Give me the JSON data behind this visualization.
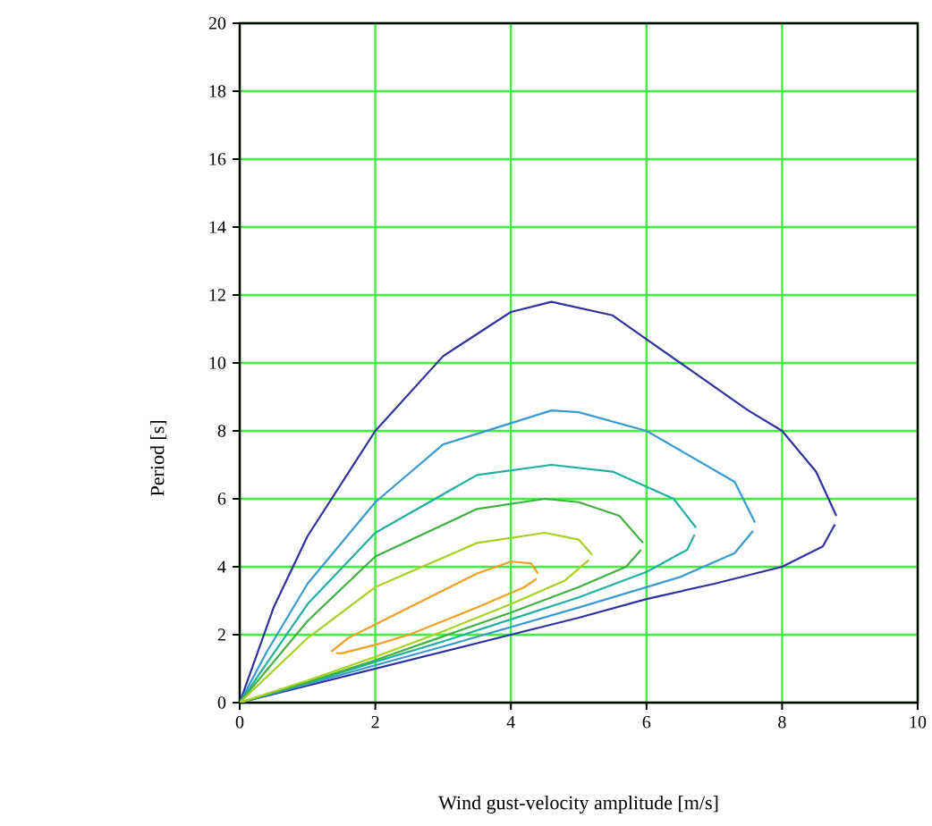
{
  "chart_data": {
    "type": "line",
    "xlabel": "Wind gust-velocity amplitude [m/s]",
    "ylabel": "Period [s]",
    "xlim": [
      0,
      10
    ],
    "ylim": [
      0,
      20
    ],
    "xticks": [
      0,
      2,
      4,
      6,
      8,
      10
    ],
    "yticks": [
      0,
      2,
      4,
      6,
      8,
      10,
      12,
      14,
      16,
      18,
      20
    ],
    "grid": true,
    "marker": "none",
    "line_style": "solid",
    "series": [
      {
        "color": "#3030a0",
        "x": [
          0,
          0.5,
          1,
          2,
          3,
          4,
          4.6,
          5.5,
          6.5,
          7.5,
          8,
          8.5,
          8.8
        ],
        "values": [
          0,
          2.8,
          4.9,
          8.0,
          10.2,
          11.5,
          11.8,
          11.4,
          10,
          8.6,
          8,
          6.8,
          5.5
        ]
      },
      {
        "color": "#3030a0",
        "x": [
          0,
          1,
          2,
          3,
          4,
          5,
          6,
          7,
          8,
          8.6,
          8.78
        ],
        "values": [
          0,
          0.5,
          1,
          1.5,
          2,
          2.5,
          3.05,
          3.5,
          4,
          4.6,
          5.25
        ]
      },
      {
        "color": "#3a9ad0",
        "x": [
          0,
          0.4,
          1,
          2,
          3,
          4.6,
          5,
          6,
          7.3,
          7.6
        ],
        "values": [
          0,
          1.5,
          3.5,
          5.9,
          7.6,
          8.6,
          8.55,
          8,
          6.5,
          5.3
        ]
      },
      {
        "color": "#3a9ad0",
        "x": [
          0,
          1,
          3,
          5,
          6.5,
          7.3,
          7.57
        ],
        "values": [
          0,
          0.55,
          1.65,
          2.8,
          3.7,
          4.4,
          5.05
        ]
      },
      {
        "color": "#20b0a0",
        "x": [
          0,
          1,
          2,
          3.5,
          4.6,
          5.5,
          6.4,
          6.73
        ],
        "values": [
          0,
          2.9,
          5.0,
          6.7,
          7.0,
          6.8,
          6.0,
          5.15
        ]
      },
      {
        "color": "#20b0a0",
        "x": [
          0,
          1,
          2,
          3,
          4,
          5,
          6,
          6.6,
          6.71
        ],
        "values": [
          0,
          0.58,
          1.2,
          1.8,
          2.45,
          3.1,
          3.85,
          4.5,
          4.95
        ]
      },
      {
        "color": "#40b040",
        "x": [
          0,
          1,
          2,
          3.5,
          4.5,
          5,
          5.6,
          5.95
        ],
        "values": [
          0,
          2.4,
          4.3,
          5.7,
          6.0,
          5.9,
          5.5,
          4.7
        ]
      },
      {
        "color": "#40b040",
        "x": [
          0,
          1,
          2,
          3,
          4,
          5,
          5.7,
          5.92
        ],
        "values": [
          0,
          0.6,
          1.25,
          1.95,
          2.65,
          3.4,
          4.0,
          4.5
        ]
      },
      {
        "color": "#a8d020",
        "x": [
          0,
          1,
          2,
          3.5,
          4.5,
          5,
          5.2
        ],
        "values": [
          0,
          1.9,
          3.4,
          4.7,
          5.0,
          4.8,
          4.35
        ]
      },
      {
        "color": "#a8d020",
        "x": [
          0,
          1,
          2,
          3,
          4,
          4.8,
          5.15
        ],
        "values": [
          0,
          0.65,
          1.35,
          2.1,
          2.9,
          3.6,
          4.2
        ]
      },
      {
        "color": "#f0a020",
        "x": [
          1.35,
          1.6,
          2,
          2.5,
          3,
          3.5,
          4,
          4.3,
          4.4
        ],
        "values": [
          1.5,
          1.9,
          2.3,
          2.8,
          3.3,
          3.8,
          4.15,
          4.1,
          3.8
        ]
      },
      {
        "color": "#f0a020",
        "x": [
          1.42,
          1.5,
          2,
          2.5,
          3,
          3.5,
          4.2,
          4.38
        ],
        "values": [
          1.46,
          1.45,
          1.7,
          2.0,
          2.4,
          2.8,
          3.4,
          3.65
        ]
      }
    ]
  }
}
